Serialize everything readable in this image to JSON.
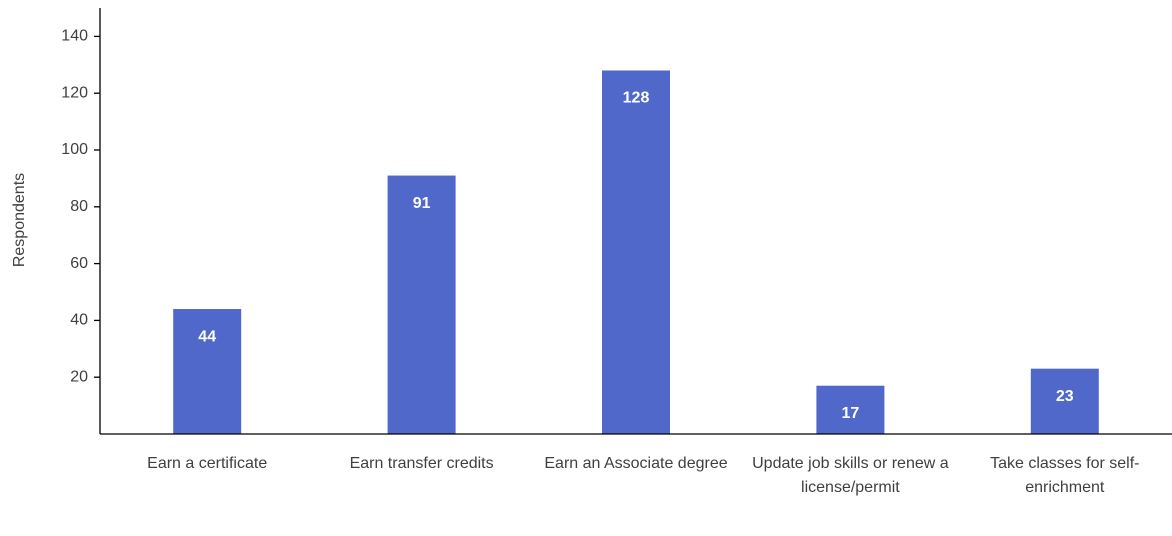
{
  "chart_data": {
    "type": "bar",
    "y_label": "Respondents",
    "categories": [
      "Earn a certificate",
      "Earn transfer credits",
      "Earn an Associate degree",
      "Update job skills or renew a license/permit",
      "Take classes for self-enrichment"
    ],
    "values": [
      44,
      91,
      128,
      17,
      23
    ],
    "color": "#4f68c9",
    "ylim": [
      0,
      150
    ],
    "yticks": [
      20,
      40,
      60,
      80,
      100,
      120,
      140
    ],
    "grid": false
  }
}
